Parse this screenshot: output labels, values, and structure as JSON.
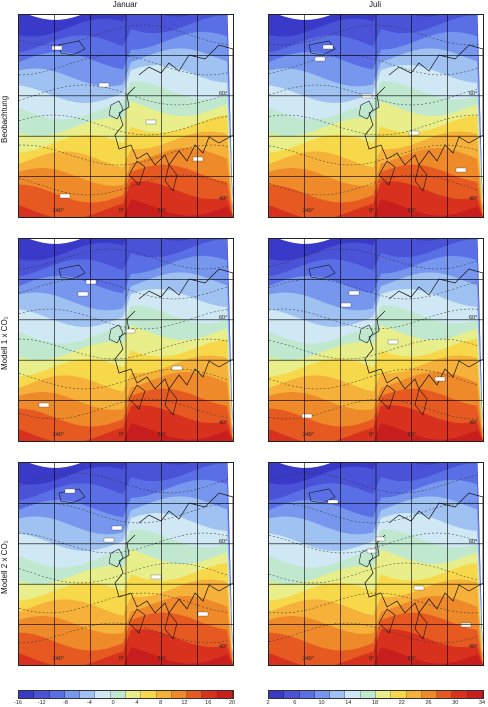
{
  "columns": [
    "Januar",
    "Juli"
  ],
  "rows": [
    "Beobachtung",
    "Modell 1 x CO₂",
    "Modell 2 x CO₂"
  ],
  "lon_ticks": [
    "340°",
    "0°",
    "20°"
  ],
  "lat_ticks": [
    "60°",
    "40°"
  ],
  "january_scale": {
    "labels": [
      "-16",
      "-12",
      "-8",
      "-4",
      "0",
      "4",
      "8",
      "12",
      "16",
      "20"
    ],
    "colors": [
      "#3a3ac8",
      "#4a52d8",
      "#5a6ee6",
      "#7796ee",
      "#a0c2f2",
      "#cfe8f4",
      "#bfe8cf",
      "#e8ef8a",
      "#f6d84a",
      "#f5b13a",
      "#ef8a2a",
      "#e65a22",
      "#d8321e",
      "#c81e1e"
    ]
  },
  "july_scale": {
    "labels": [
      "2",
      "6",
      "10",
      "14",
      "18",
      "22",
      "26",
      "30",
      "34"
    ],
    "colors": [
      "#3a3ac8",
      "#4a52d8",
      "#5a6ee6",
      "#7796ee",
      "#a0c2f2",
      "#cfe8f4",
      "#bfe8cf",
      "#e8ef8a",
      "#f6d84a",
      "#f5b13a",
      "#ef8a2a",
      "#e65a22",
      "#d8321e",
      "#c81e1e"
    ]
  }
}
